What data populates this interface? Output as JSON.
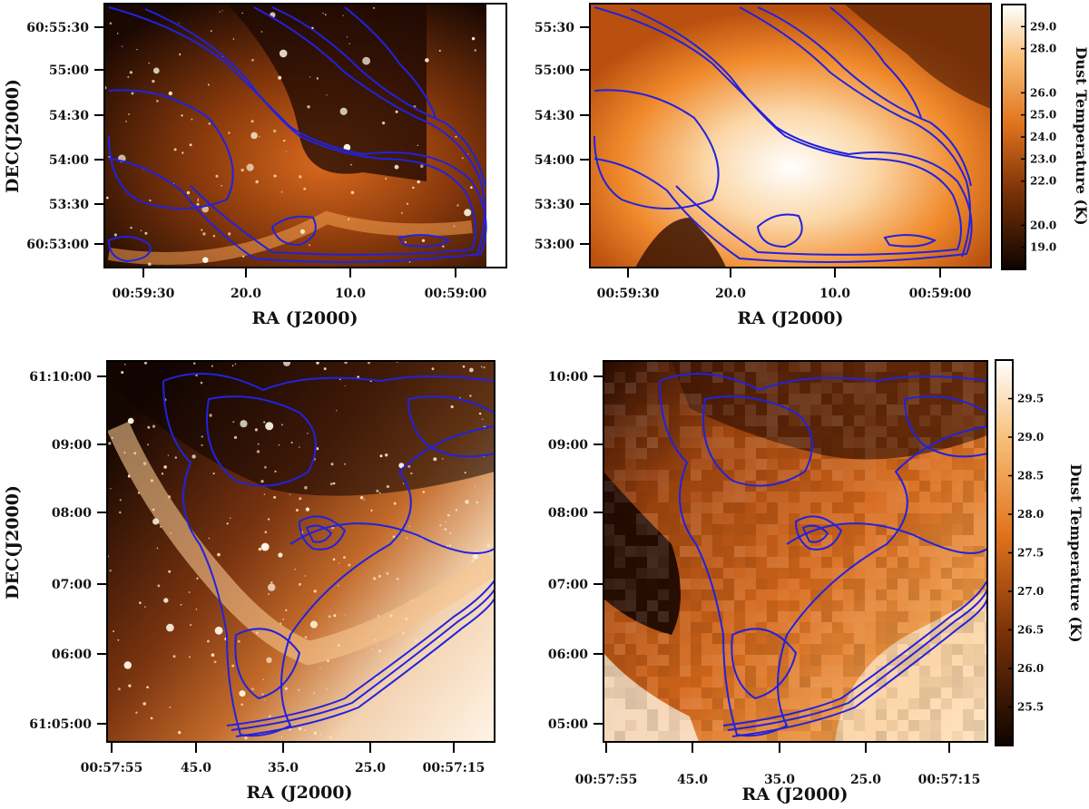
{
  "colors": {
    "contour": "#2222dd",
    "map_low": "#0d0400",
    "map_mid": "#c45a12",
    "map_high": "#ffffff",
    "background": "#ffffff"
  },
  "chart_data": [
    {
      "type": "heatmap",
      "panel": "top-left",
      "image": "optical image with dust contours",
      "xlabel": "RA (J2000)",
      "ylabel": "DEC(J2000)",
      "xtick_labels": [
        "00:59:30",
        "20.0",
        "10.0",
        "00:59:00"
      ],
      "ytick_labels": [
        "60:55:30",
        "55:00",
        "54:30",
        "54:00",
        "53:30",
        "60:53:00"
      ],
      "contours": true
    },
    {
      "type": "heatmap",
      "panel": "top-right",
      "image": "dust temperature map with contours",
      "xlabel": "RA (J2000)",
      "ylabel": "",
      "xtick_labels": [
        "00:59:30",
        "20.0",
        "10.0",
        "00:59:00"
      ],
      "ytick_labels": [
        "55:30",
        "55:00",
        "54:30",
        "54:00",
        "53:30",
        "53:00"
      ],
      "colorbar": {
        "label": "Dust Temperature (K)",
        "ticks": [
          "29.0",
          "28.0",
          "26.0",
          "25.0",
          "24.0",
          "23.0",
          "22.0",
          "20.0",
          "19.0"
        ],
        "range": [
          18.0,
          30.0
        ]
      },
      "contours": true
    },
    {
      "type": "heatmap",
      "panel": "bottom-left",
      "image": "optical image with dust contours",
      "xlabel": "RA (J2000)",
      "ylabel": "DEC(J2000)",
      "xtick_labels": [
        "00:57:55",
        "45.0",
        "35.0",
        "25.0",
        "00:57:15"
      ],
      "ytick_labels": [
        "61:10:00",
        "09:00",
        "08:00",
        "07:00",
        "06:00",
        "61:05:00"
      ],
      "contours": true
    },
    {
      "type": "heatmap",
      "panel": "bottom-right",
      "image": "dust temperature map with contours",
      "xlabel": "RA (J2000)",
      "ylabel": "",
      "xtick_labels": [
        "00:57:55",
        "45.0",
        "35.0",
        "25.0",
        "00:57:15"
      ],
      "ytick_labels": [
        "10:00",
        "09:00",
        "08:00",
        "07:00",
        "06:00",
        "05:00"
      ],
      "colorbar": {
        "label": "Dust Temperature (K)",
        "ticks": [
          "29.5",
          "29.0",
          "28.5",
          "28.0",
          "27.5",
          "27.0",
          "26.5",
          "26.0",
          "25.5"
        ],
        "range": [
          25.0,
          30.0
        ]
      },
      "contours": true
    }
  ]
}
